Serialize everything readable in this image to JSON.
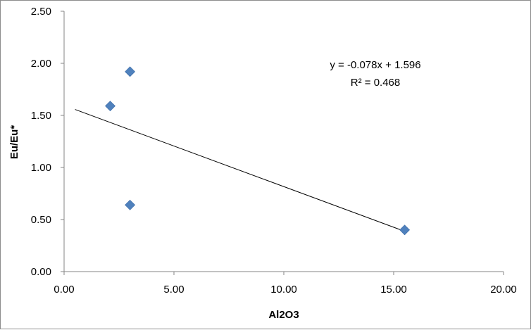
{
  "chart_data": {
    "type": "scatter",
    "title": "",
    "xlabel": "Al2O3",
    "ylabel": "Eu/Eu*",
    "xlim": [
      0,
      20
    ],
    "ylim": [
      0,
      2.5
    ],
    "x_ticks": [
      "0.00",
      "5.00",
      "10.00",
      "15.00",
      "20.00"
    ],
    "y_ticks": [
      "0.00",
      "0.50",
      "1.00",
      "1.50",
      "2.00",
      "2.50"
    ],
    "grid": false,
    "legend": "none",
    "marker": "diamond",
    "marker_color": "#4f81bd",
    "points": [
      {
        "x": 3.0,
        "y": 1.92
      },
      {
        "x": 2.1,
        "y": 1.59
      },
      {
        "x": 3.0,
        "y": 0.64
      },
      {
        "x": 15.5,
        "y": 0.4
      }
    ],
    "trendline": {
      "type": "linear",
      "slope": -0.078,
      "intercept": 1.596,
      "x_range": [
        0.5,
        15.5
      ],
      "equation_label": "y = -0.078x + 1.596",
      "r2_label": "R² = 0.468"
    }
  }
}
